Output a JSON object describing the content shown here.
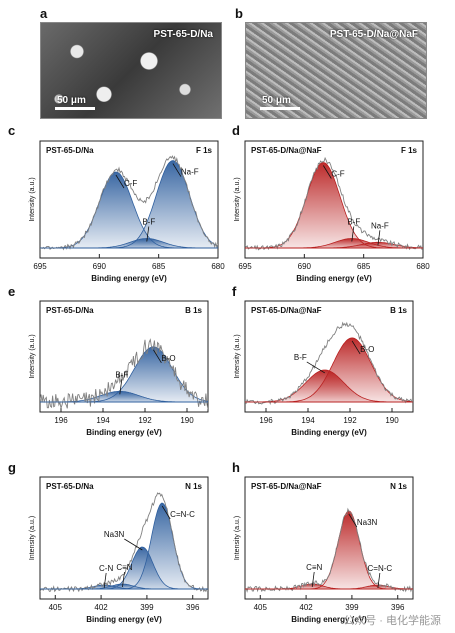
{
  "panels": [
    {
      "id": "a",
      "letter": "a",
      "title": "PST-65-D/Na",
      "scale": "50 μm"
    },
    {
      "id": "b",
      "letter": "b",
      "title": "PST-65-D/Na@NaF",
      "scale": "50 μm"
    },
    {
      "id": "c",
      "letter": "c",
      "sample": "PST-65-D/Na",
      "region": "F 1s",
      "xlabel": "Binding energy (eV)",
      "ylabel": "Intensity (a.u.)",
      "xticks": [
        "695",
        "690",
        "685",
        "680"
      ],
      "labels": [
        "C-F",
        "B-F",
        "Na-F"
      ]
    },
    {
      "id": "d",
      "letter": "d",
      "sample": "PST-65-D/Na@NaF",
      "region": "F 1s",
      "xlabel": "Binding energy (eV)",
      "ylabel": "Intensity (a.u.)",
      "xticks": [
        "695",
        "690",
        "685",
        "680"
      ],
      "labels": [
        "C-F",
        "B-F",
        "Na-F"
      ]
    },
    {
      "id": "e",
      "letter": "e",
      "sample": "PST-65-D/Na",
      "region": "B 1s",
      "xlabel": "Binding energy (eV)",
      "ylabel": "Intensity (a.u.)",
      "xticks": [
        "196",
        "194",
        "192",
        "190"
      ],
      "labels": [
        "B-O",
        "B-F"
      ]
    },
    {
      "id": "f",
      "letter": "f",
      "sample": "PST-65-D/Na@NaF",
      "region": "B 1s",
      "xlabel": "Binding energy (eV)",
      "ylabel": "Intensity (a.u.)",
      "xticks": [
        "196",
        "194",
        "192",
        "190"
      ],
      "labels": [
        "B-O",
        "B-F"
      ]
    },
    {
      "id": "g",
      "letter": "g",
      "sample": "PST-65-D/Na",
      "region": "N 1s",
      "xlabel": "Binding energy (eV)",
      "ylabel": "Intensity (a.u.)",
      "xticks": [
        "405",
        "402",
        "399",
        "396"
      ],
      "labels": [
        "C=N-C",
        "Na3N",
        "C-N",
        "C≡N"
      ]
    },
    {
      "id": "h",
      "letter": "h",
      "sample": "PST-65-D/Na@NaF",
      "region": "N 1s",
      "xlabel": "Binding energy (eV)",
      "ylabel": "Intensity (a.u.)",
      "xticks": [
        "405",
        "402",
        "399",
        "396"
      ],
      "labels": [
        "Na3N",
        "C≡N",
        "C=N-C"
      ]
    }
  ],
  "chart_data": [
    {
      "panel": "c",
      "type": "line",
      "xlim": [
        695,
        680
      ],
      "peaks": [
        {
          "label": "C-F",
          "center": 688.6,
          "height": 0.8
        },
        {
          "label": "B-F",
          "center": 686.0,
          "height": 0.1
        },
        {
          "label": "Na-F",
          "center": 683.8,
          "height": 0.92
        }
      ],
      "colors": {
        "fill": "#2f5f9e",
        "line": "#808080"
      }
    },
    {
      "panel": "d",
      "type": "line",
      "xlim": [
        695,
        680
      ],
      "peaks": [
        {
          "label": "C-F",
          "center": 688.4,
          "height": 0.9
        },
        {
          "label": "B-F",
          "center": 686.0,
          "height": 0.1
        },
        {
          "label": "Na-F",
          "center": 683.8,
          "height": 0.06
        }
      ],
      "colors": {
        "fill": "#b92020",
        "line": "#808080"
      }
    },
    {
      "panel": "e",
      "type": "line",
      "xlim": [
        197,
        189
      ],
      "peaks": [
        {
          "label": "B-O",
          "center": 191.6,
          "height": 0.62
        },
        {
          "label": "B-F",
          "center": 193.2,
          "height": 0.12
        }
      ],
      "colors": {
        "fill": "#2f5f9e",
        "line": "#808080"
      }
    },
    {
      "panel": "f",
      "type": "line",
      "xlim": [
        197,
        189
      ],
      "peaks": [
        {
          "label": "B-O",
          "center": 191.9,
          "height": 0.72
        },
        {
          "label": "B-F",
          "center": 193.2,
          "height": 0.36
        }
      ],
      "colors": {
        "fill": "#b92020",
        "line": "#808080"
      }
    },
    {
      "panel": "g",
      "type": "line",
      "xlim": [
        406,
        395
      ],
      "peaks": [
        {
          "label": "C=N-C",
          "center": 398.0,
          "height": 0.86
        },
        {
          "label": "Na3N",
          "center": 399.3,
          "height": 0.42
        },
        {
          "label": "C-N",
          "center": 401.8,
          "height": 0.04
        },
        {
          "label": "C≡N",
          "center": 400.6,
          "height": 0.05
        }
      ],
      "colors": {
        "fill": "#2f5f9e",
        "line": "#808080"
      }
    },
    {
      "panel": "h",
      "type": "line",
      "xlim": [
        406,
        395
      ],
      "peaks": [
        {
          "label": "Na3N",
          "center": 399.2,
          "height": 0.78
        },
        {
          "label": "C≡N",
          "center": 401.6,
          "height": 0.05
        },
        {
          "label": "C=N-C",
          "center": 397.3,
          "height": 0.04
        }
      ],
      "colors": {
        "fill": "#b92020",
        "line": "#808080"
      }
    }
  ],
  "watermark": "公众号 · 电化学能源"
}
